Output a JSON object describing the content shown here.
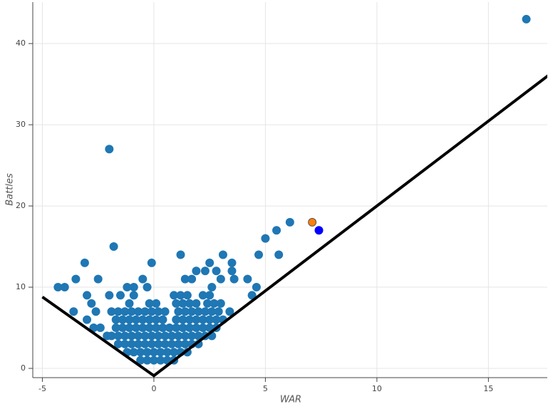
{
  "chart_data": {
    "type": "scatter",
    "x_label": "WAR",
    "y_label": "Battles",
    "xlim": [
      -5.43,
      17.64
    ],
    "ylim": [
      -1.14,
      45.1
    ],
    "xticks": [
      -5,
      0,
      5,
      10,
      15
    ],
    "yticks": [
      0,
      10,
      20,
      30,
      40
    ],
    "grid": true,
    "series": [
      {
        "type": "scatter",
        "color": "#1f77b4",
        "x": [
          16.7,
          -2.0,
          6.1,
          5.5,
          5.0,
          -1.8,
          1.2,
          3.1,
          4.7,
          5.6,
          -3.1,
          -0.1,
          2.5,
          3.5,
          1.9,
          2.3,
          2.8,
          3.5,
          -3.5,
          -2.5,
          -0.5,
          1.4,
          1.7,
          3.0,
          3.6,
          4.2,
          -4.3,
          -4.0,
          -1.2,
          -0.9,
          -0.3,
          2.6,
          4.6,
          -3.0,
          -2.0,
          -1.5,
          -0.9,
          0.9,
          1.2,
          1.5,
          2.2,
          2.5,
          4.4,
          -2.8,
          -1.1,
          -0.2,
          0.1,
          1.0,
          1.3,
          1.6,
          1.9,
          2.4,
          2.7,
          3.0,
          -3.6,
          -2.6,
          -1.9,
          -1.6,
          -1.3,
          -1.0,
          -0.7,
          -0.4,
          -0.1,
          0.2,
          0.5,
          1.1,
          1.4,
          1.7,
          2.0,
          2.3,
          2.6,
          2.9,
          3.4,
          -3.0,
          -1.7,
          -1.4,
          -1.1,
          -0.8,
          -0.5,
          -0.2,
          0.1,
          0.4,
          1.0,
          1.3,
          1.6,
          1.9,
          2.2,
          2.5,
          2.8,
          3.1,
          -2.7,
          -2.4,
          -1.7,
          -1.4,
          -1.1,
          -0.8,
          -0.5,
          -0.2,
          0.1,
          0.4,
          0.7,
          1.0,
          1.3,
          1.6,
          1.9,
          2.2,
          2.5,
          2.8,
          -2.1,
          -1.9,
          -1.6,
          -1.3,
          -1.0,
          -0.7,
          -0.4,
          -0.1,
          0.2,
          0.5,
          0.8,
          1.1,
          1.4,
          1.7,
          2.0,
          2.3,
          2.6,
          -1.6,
          -1.3,
          -1.0,
          -0.7,
          -0.4,
          -0.1,
          0.2,
          0.5,
          0.8,
          1.1,
          1.4,
          1.7,
          2.0,
          -1.2,
          -0.9,
          -0.6,
          -0.3,
          0.0,
          0.3,
          0.6,
          0.9,
          1.2,
          1.5,
          -0.6,
          -0.3,
          0.0,
          0.3,
          0.6,
          0.9
        ],
        "values": [
          43,
          27,
          18,
          17,
          16,
          15,
          14,
          14,
          14,
          14,
          13,
          13,
          13,
          13,
          12,
          12,
          12,
          12,
          11,
          11,
          11,
          11,
          11,
          11,
          11,
          11,
          10,
          10,
          10,
          10,
          10,
          10,
          10,
          9,
          9,
          9,
          9,
          9,
          9,
          9,
          9,
          9,
          9,
          8,
          8,
          8,
          8,
          8,
          8,
          8,
          8,
          8,
          8,
          8,
          7,
          7,
          7,
          7,
          7,
          7,
          7,
          7,
          7,
          7,
          7,
          7,
          7,
          7,
          7,
          7,
          7,
          7,
          7,
          6,
          6,
          6,
          6,
          6,
          6,
          6,
          6,
          6,
          6,
          6,
          6,
          6,
          6,
          6,
          6,
          6,
          5,
          5,
          5,
          5,
          5,
          5,
          5,
          5,
          5,
          5,
          5,
          5,
          5,
          5,
          5,
          5,
          5,
          5,
          4,
          4,
          4,
          4,
          4,
          4,
          4,
          4,
          4,
          4,
          4,
          4,
          4,
          4,
          4,
          4,
          4,
          3,
          3,
          3,
          3,
          3,
          3,
          3,
          3,
          3,
          3,
          3,
          3,
          3,
          2,
          2,
          2,
          2,
          2,
          2,
          2,
          2,
          2,
          2,
          1,
          1,
          1,
          1,
          1,
          1
        ]
      },
      {
        "type": "scatter",
        "color": "#ff7f0e",
        "x": [
          7.1
        ],
        "values": [
          18
        ]
      },
      {
        "type": "scatter",
        "color": "#0000ff",
        "x": [
          7.4
        ],
        "values": [
          17
        ]
      },
      {
        "type": "line",
        "color": "#000000",
        "x": [
          -5.0,
          0.0,
          17.7
        ],
        "values": [
          8.8,
          -0.9,
          36.1
        ]
      }
    ]
  }
}
